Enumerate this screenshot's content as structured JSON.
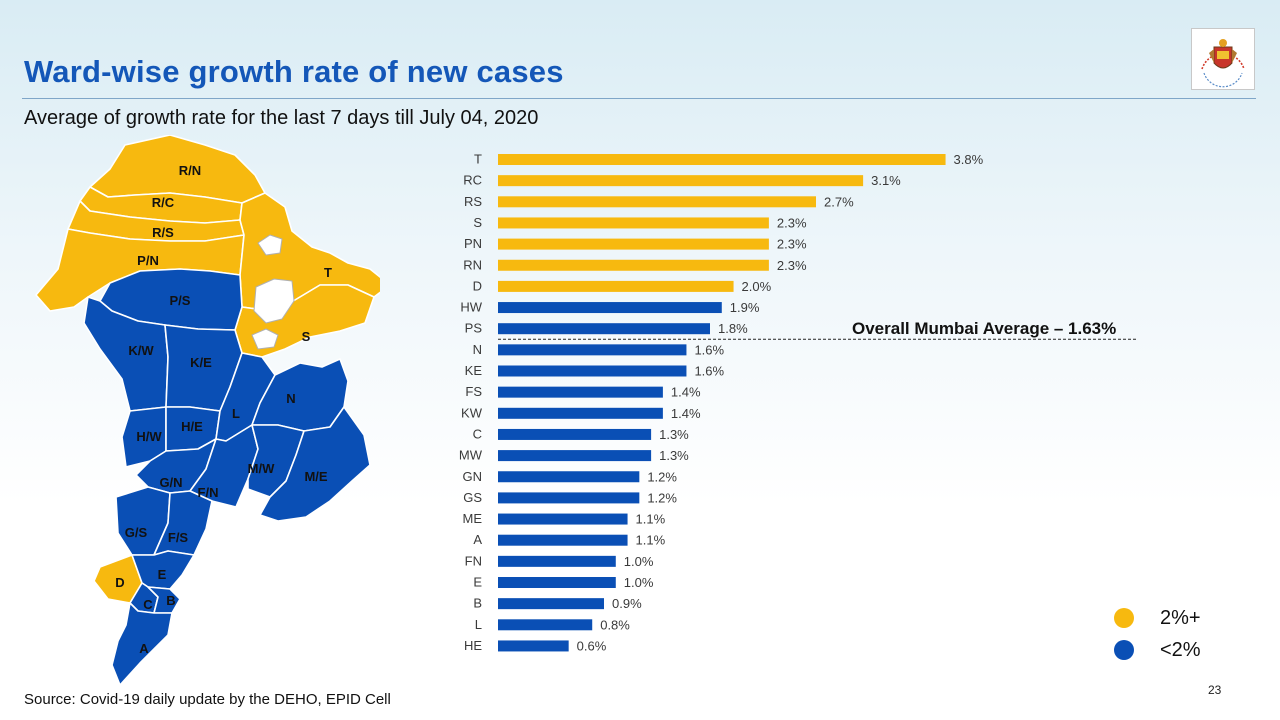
{
  "header": {
    "title": "Ward-wise growth rate of new cases",
    "subtitle": "Average of growth rate for the last 7 days till July 04, 2020"
  },
  "footer": {
    "source": "Source: Covid-19 daily update by the DEHO, EPID Cell",
    "page_number": "23"
  },
  "colors": {
    "high": "#f7b90f",
    "low": "#0a4fb5",
    "outline": "#ffffff"
  },
  "legend": [
    {
      "label": "2%+",
      "color": "#f7b90f"
    },
    {
      "label": "<2%",
      "color": "#0a4fb5"
    }
  ],
  "map": {
    "labels": [
      "R/N",
      "R/C",
      "R/S",
      "P/N",
      "T",
      "S",
      "P/S",
      "K/W",
      "K/E",
      "L",
      "N",
      "H/W",
      "H/E",
      "M/W",
      "M/E",
      "G/N",
      "F/N",
      "G/S",
      "F/S",
      "E",
      "D",
      "C",
      "B",
      "A"
    ]
  },
  "chart_data": {
    "type": "bar",
    "orientation": "horizontal",
    "categories": [
      "T",
      "RC",
      "RS",
      "S",
      "PN",
      "RN",
      "D",
      "HW",
      "PS",
      "N",
      "KE",
      "FS",
      "KW",
      "C",
      "MW",
      "GN",
      "GS",
      "ME",
      "A",
      "FN",
      "E",
      "B",
      "L",
      "HE"
    ],
    "values": [
      3.8,
      3.1,
      2.7,
      2.3,
      2.3,
      2.3,
      2.0,
      1.9,
      1.8,
      1.6,
      1.6,
      1.4,
      1.4,
      1.3,
      1.3,
      1.2,
      1.2,
      1.1,
      1.1,
      1.0,
      1.0,
      0.9,
      0.8,
      0.6
    ],
    "value_labels": [
      "3.8%",
      "3.1%",
      "2.7%",
      "2.3%",
      "2.3%",
      "2.3%",
      "2.0%",
      "1.9%",
      "1.8%",
      "1.6%",
      "1.6%",
      "1.4%",
      "1.4%",
      "1.3%",
      "1.3%",
      "1.2%",
      "1.2%",
      "1.1%",
      "1.1%",
      "1.0%",
      "1.0%",
      "0.9%",
      "0.8%",
      "0.6%"
    ],
    "threshold": 2.0,
    "average_value": 1.63,
    "average_label": "Overall Mumbai Average – 1.63%",
    "xlim": [
      0,
      4.5
    ],
    "unit": "%"
  }
}
